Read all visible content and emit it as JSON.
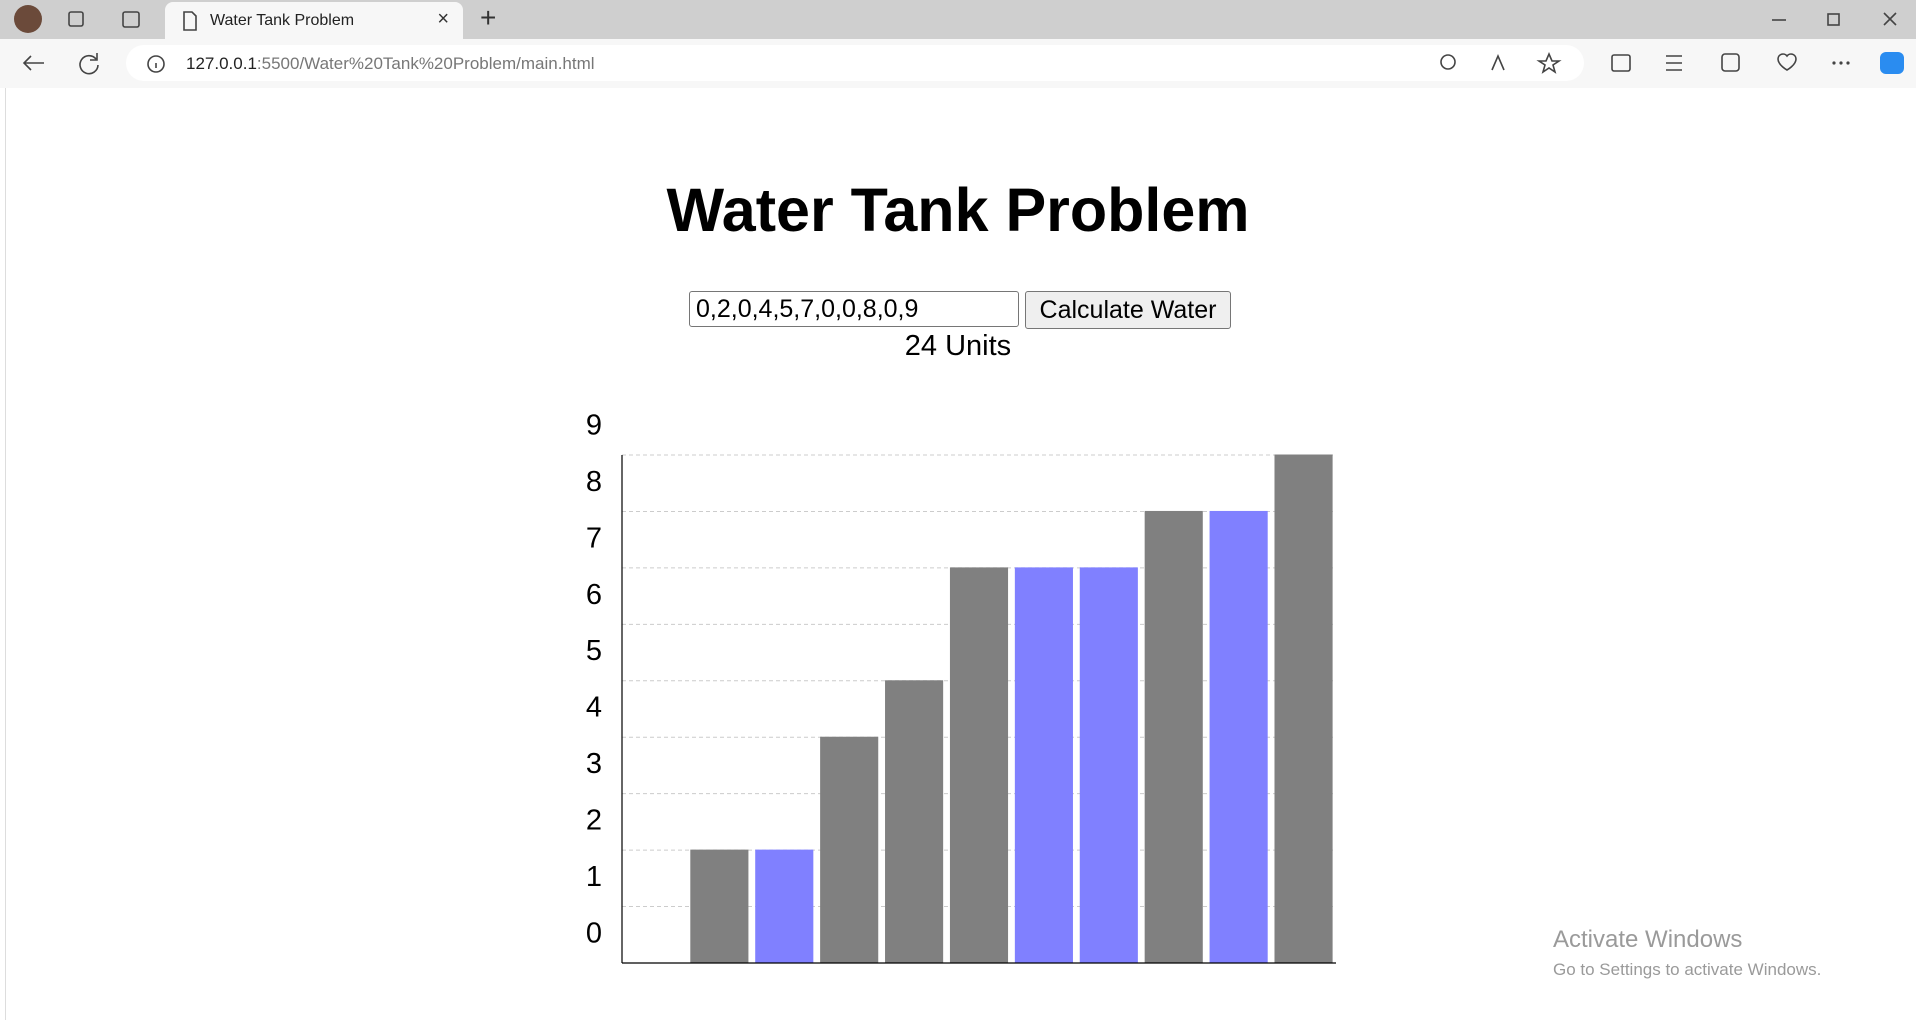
{
  "browser": {
    "tab_title": "Water Tank Problem",
    "url_host": "127.0.0.1",
    "url_path": ":5500/Water%20Tank%20Problem/main.html"
  },
  "page": {
    "title": "Water Tank Problem",
    "input_value": "0,2,0,4,5,7,0,0,8,0,9",
    "button": "Calculate Water",
    "result": "24 Units"
  },
  "chart_data": {
    "type": "bar",
    "stacked": true,
    "categories": [
      null,
      null,
      null,
      null,
      null,
      null,
      null,
      null,
      null,
      null,
      null
    ],
    "series": [
      {
        "color": "#808080",
        "values": [
          0,
          2,
          0,
          4,
          5,
          7,
          0,
          0,
          8,
          0,
          9
        ]
      },
      {
        "color": "#8080ff",
        "values": [
          0,
          0,
          2,
          0,
          0,
          0,
          7,
          7,
          0,
          8,
          0
        ]
      }
    ],
    "ylim": [
      0,
      9
    ],
    "yticks": [
      0,
      1,
      2,
      3,
      4,
      5,
      6,
      7,
      8,
      9
    ],
    "grid": true
  },
  "watermark": {
    "title": "Activate Windows",
    "subtitle": "Go to Settings to activate Windows."
  }
}
